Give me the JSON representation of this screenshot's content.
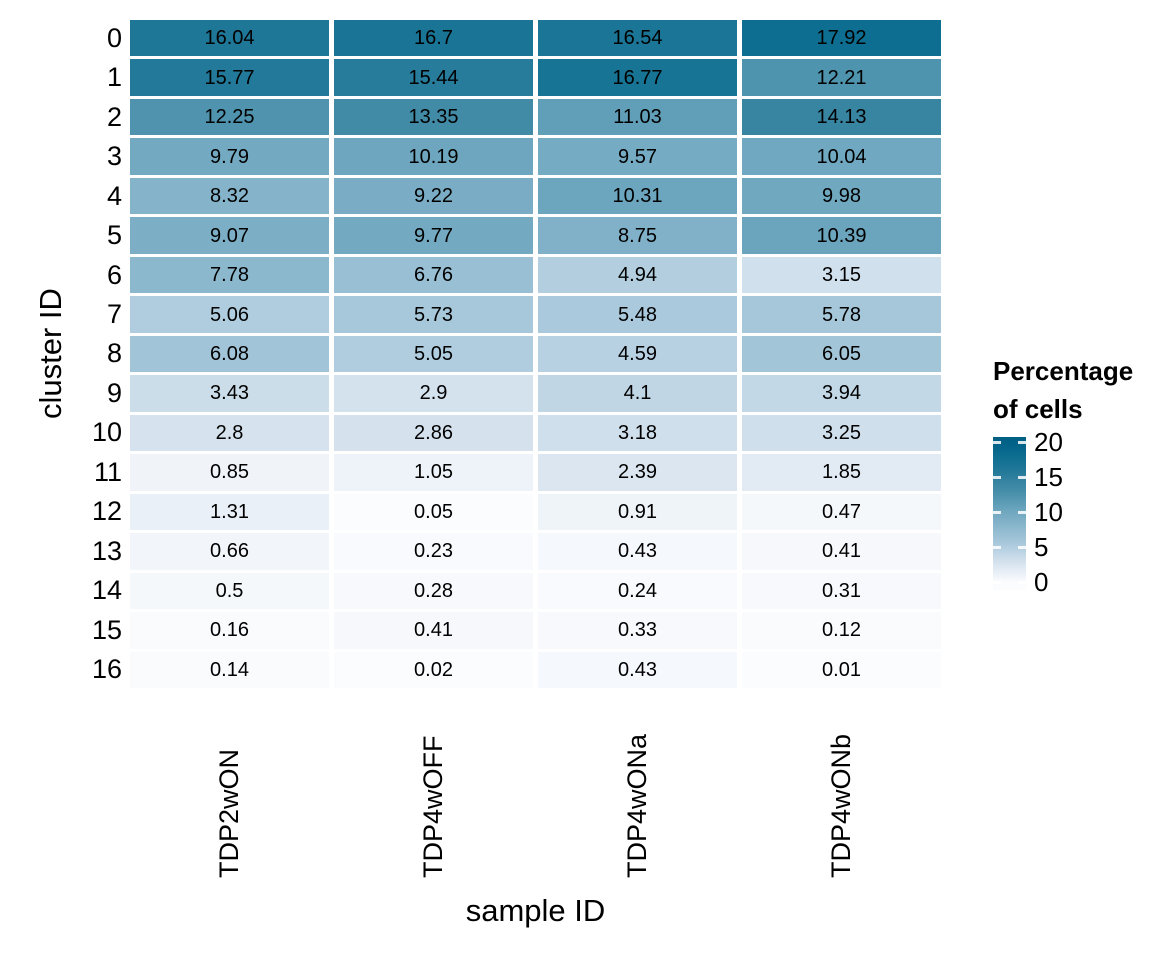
{
  "figure": {
    "background": "#FFFFFF",
    "text_color": "#000000"
  },
  "chart_data": {
    "type": "heatmap",
    "title": "",
    "xlabel": "sample ID",
    "ylabel": "cluster ID",
    "x_categories": [
      "TDP2wON",
      "TDP4wOFF",
      "TDP4wONa",
      "TDP4wONb"
    ],
    "y_categories": [
      "0",
      "1",
      "2",
      "3",
      "4",
      "5",
      "6",
      "7",
      "8",
      "9",
      "10",
      "11",
      "12",
      "13",
      "14",
      "15",
      "16"
    ],
    "values": [
      [
        16.04,
        16.7,
        16.54,
        17.92
      ],
      [
        15.77,
        15.44,
        16.77,
        12.21
      ],
      [
        12.25,
        13.35,
        11.03,
        14.13
      ],
      [
        9.79,
        10.19,
        9.57,
        10.04
      ],
      [
        8.32,
        9.22,
        10.31,
        9.98
      ],
      [
        9.07,
        9.77,
        8.75,
        10.39
      ],
      [
        7.78,
        6.76,
        4.94,
        3.15
      ],
      [
        5.06,
        5.73,
        5.48,
        5.78
      ],
      [
        6.08,
        5.05,
        4.59,
        6.05
      ],
      [
        3.43,
        2.9,
        4.1,
        3.94
      ],
      [
        2.8,
        2.86,
        3.18,
        3.25
      ],
      [
        0.85,
        1.05,
        2.39,
        1.85
      ],
      [
        1.31,
        0.05,
        0.91,
        0.47
      ],
      [
        0.66,
        0.23,
        0.43,
        0.41
      ],
      [
        0.5,
        0.28,
        0.24,
        0.31
      ],
      [
        0.16,
        0.41,
        0.33,
        0.12
      ],
      [
        0.14,
        0.02,
        0.43,
        0.01
      ]
    ],
    "legend": {
      "title_lines": [
        "Percentage",
        "of cells"
      ],
      "ticks": [
        20,
        15,
        10,
        5,
        0
      ],
      "position": "right"
    },
    "color_scale": {
      "type": "gradient",
      "domain": [
        0,
        20
      ],
      "low": "#FBFCFE",
      "high": "#015F84",
      "stops": [
        [
          0,
          "#FBFCFE"
        ],
        [
          3,
          "#D3E1ED"
        ],
        [
          5,
          "#B1CDDF"
        ],
        [
          7,
          "#96BDD2"
        ],
        [
          10,
          "#70A8C0"
        ],
        [
          12.5,
          "#4B91AC"
        ],
        [
          14.5,
          "#3482A0"
        ],
        [
          16,
          "#1F7798"
        ],
        [
          18,
          "#0D6E91"
        ],
        [
          20,
          "#015F84"
        ]
      ]
    },
    "grid_lines": false,
    "cell_value_labels": true
  }
}
